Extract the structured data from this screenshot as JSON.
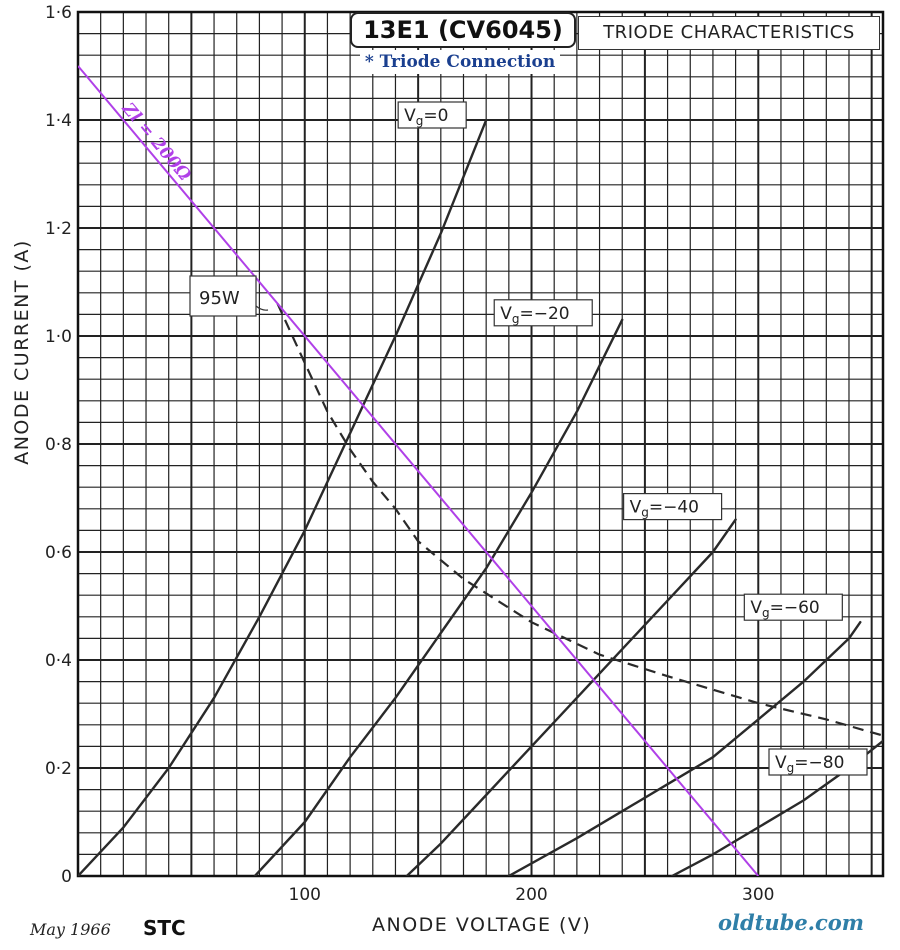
{
  "header": {
    "title": "13E1 (CV6045)",
    "subtitle": "TRIODE CHARACTERISTICS",
    "connection_note": "* Triode Connection"
  },
  "footer": {
    "date": "May 1966",
    "maker": "STC",
    "source": "oldtube.com"
  },
  "chart_data": {
    "type": "line",
    "title": "13E1 (CV6045)",
    "subtitle": "TRIODE CHARACTERISTICS",
    "xlabel": "ANODE VOLTAGE (V)",
    "ylabel": "ANODE CURRENT (A)",
    "xlim": [
      0,
      355
    ],
    "ylim": [
      0,
      1.6
    ],
    "x_ticks": [
      100,
      200,
      300
    ],
    "x_tick_labels": [
      "100",
      "200",
      "300"
    ],
    "y_ticks": [
      0,
      0.2,
      0.4,
      0.6,
      0.8,
      1.0,
      1.2,
      1.4,
      1.6
    ],
    "y_tick_labels": [
      "0",
      "0·2",
      "0·4",
      "0·6",
      "0·8",
      "1·0",
      "1·2",
      "1·4",
      "1·6"
    ],
    "grid": true,
    "colors": {
      "curve": "#2a2a2a",
      "grid": "#222222",
      "load_line": "#b040e8",
      "title_blue": "#1a3f8f",
      "source": "#2f7fa8"
    },
    "series": [
      {
        "name": "Vg=0",
        "label_parts": [
          "V",
          "g",
          "=0"
        ],
        "x": [
          0,
          20,
          40,
          60,
          80,
          100,
          120,
          140,
          160,
          180
        ],
        "y": [
          0,
          0.09,
          0.2,
          0.33,
          0.48,
          0.64,
          0.82,
          1.0,
          1.19,
          1.4
        ]
      },
      {
        "name": "Vg=-20",
        "label_parts": [
          "V",
          "g",
          "=−20"
        ],
        "x": [
          78,
          100,
          120,
          140,
          160,
          180,
          200,
          220,
          240
        ],
        "y": [
          0,
          0.1,
          0.22,
          0.33,
          0.45,
          0.57,
          0.71,
          0.86,
          1.03
        ]
      },
      {
        "name": "Vg=-40",
        "label_parts": [
          "V",
          "g",
          "=−40"
        ],
        "x": [
          145,
          160,
          180,
          200,
          220,
          240,
          260,
          280,
          290
        ],
        "y": [
          0,
          0.06,
          0.15,
          0.24,
          0.33,
          0.42,
          0.51,
          0.6,
          0.66
        ]
      },
      {
        "name": "Vg=-60",
        "label_parts": [
          "V",
          "g",
          "=−60"
        ],
        "x": [
          190,
          220,
          240,
          260,
          280,
          300,
          320,
          340,
          345
        ],
        "y": [
          0,
          0.07,
          0.12,
          0.17,
          0.22,
          0.29,
          0.36,
          0.44,
          0.47
        ]
      },
      {
        "name": "Vg=-80",
        "label_parts": [
          "V",
          "g",
          "=−80"
        ],
        "x": [
          262,
          280,
          300,
          320,
          340,
          355
        ],
        "y": [
          0,
          0.04,
          0.09,
          0.14,
          0.2,
          0.25
        ]
      }
    ],
    "dissipation_curve": {
      "label": "95W",
      "watts": 95,
      "x": [
        88,
        100,
        110,
        120,
        130,
        140,
        150,
        170,
        200,
        230,
        260,
        300,
        330,
        355
      ],
      "y": [
        1.06,
        0.95,
        0.86,
        0.79,
        0.73,
        0.68,
        0.62,
        0.55,
        0.47,
        0.41,
        0.37,
        0.32,
        0.29,
        0.26
      ]
    },
    "load_line": {
      "label": "Zl = 200Ω",
      "x": [
        0,
        300
      ],
      "y": [
        1.5,
        0
      ]
    }
  }
}
